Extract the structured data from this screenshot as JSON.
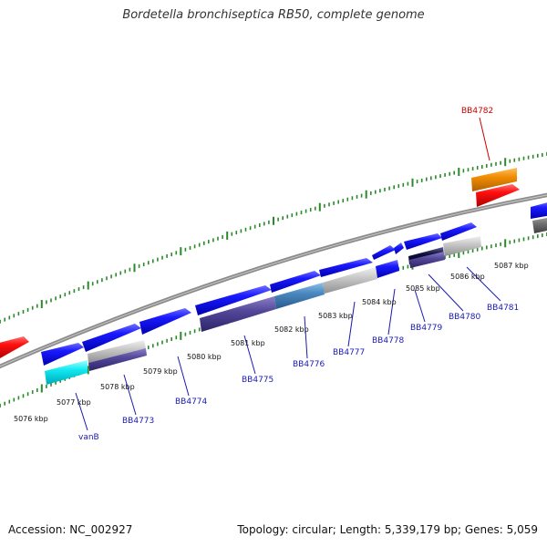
{
  "map": {
    "title": "Bordetella bronchiseptica RB50, complete genome",
    "accession": "Accession: NC_002927",
    "topology": "Topology: circular; Length: 5,339,179 bp; Genes: 5,059"
  },
  "colors": {
    "backbone": "#8c8c8c",
    "ticks": "#2a8a2a",
    "gene_label": "#1a1ab4",
    "highlight_label": "#cc0000"
  },
  "kbp_labels": [
    "5076 kbp",
    "5077 kbp",
    "5078 kbp",
    "5079 kbp",
    "5080 kbp",
    "5081 kbp",
    "5082 kbp",
    "5083 kbp",
    "5084 kbp",
    "5085 kbp",
    "5086 kbp",
    "5087 kbp"
  ],
  "gene_labels": [
    "vanB",
    "BB4773",
    "BB4774",
    "BB4775",
    "BB4776",
    "BB4777",
    "BB4778",
    "BB4779",
    "BB4780",
    "BB4781",
    "BB4782"
  ]
}
